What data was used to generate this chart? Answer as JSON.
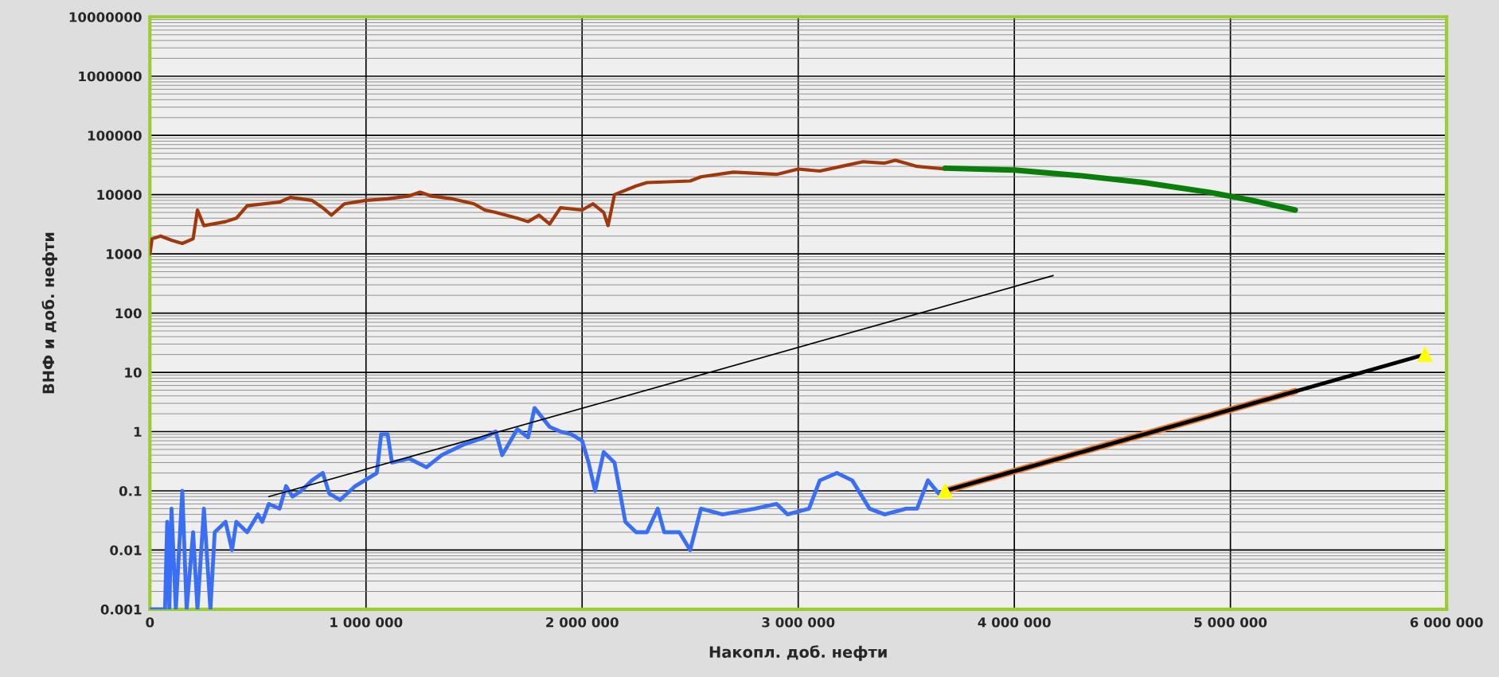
{
  "chart_data": {
    "type": "line",
    "xlabel": "Накопл. доб. нефти",
    "ylabel": "ВНФ и доб. нефти",
    "log": "y",
    "grid": true,
    "legend": false,
    "marker": "none",
    "line_style": "solid",
    "xlim": [
      0,
      6000000
    ],
    "xticks": [
      0,
      {
        "value": 1000000,
        "label": "1 000 000"
      },
      {
        "value": 2000000,
        "label": "2 000 000"
      },
      {
        "value": 3000000,
        "label": "3 000 000"
      },
      {
        "value": 4000000,
        "label": "4 000 000"
      },
      {
        "value": 5000000,
        "label": "5 000 000"
      },
      {
        "value": 6000000,
        "label": "6 000 000"
      }
    ],
    "ylim": [
      0.001,
      10000000
    ],
    "yticks": [
      0.001,
      0.01,
      0.1,
      1,
      10,
      100,
      1000,
      10000,
      100000,
      1000000,
      10000000
    ],
    "series": [
      {
        "color": "#a0380c",
        "x": [
          0,
          10000,
          50000,
          100000,
          150000,
          200000,
          220000,
          250000,
          350000,
          400000,
          450000,
          600000,
          650000,
          750000,
          800000,
          840000,
          900000,
          1000000,
          1100000,
          1200000,
          1250000,
          1300000,
          1400000,
          1500000,
          1550000,
          1600000,
          1700000,
          1750000,
          1800000,
          1850000,
          1900000,
          2000000,
          2050000,
          2100000,
          2120000,
          2150000,
          2250000,
          2300000,
          2500000,
          2550000,
          2700000,
          2900000,
          3000000,
          3100000,
          3200000,
          3300000,
          3400000,
          3450000,
          3550000,
          3680000
        ],
        "values": [
          1000,
          1800,
          2000,
          1700,
          1500,
          1800,
          5500,
          3000,
          3500,
          4000,
          6500,
          7500,
          9000,
          8000,
          6000,
          4500,
          7000,
          8000,
          8500,
          9500,
          11000,
          9500,
          8500,
          7000,
          5500,
          5000,
          4000,
          3500,
          4500,
          3200,
          6000,
          5500,
          7000,
          5000,
          3000,
          10000,
          14000,
          16000,
          17000,
          20000,
          24000,
          22000,
          27000,
          25000,
          30000,
          36000,
          34000,
          38000,
          30000,
          27000
        ]
      },
      {
        "color": "#3a6ff5",
        "x": [
          0,
          70000,
          80000,
          90000,
          100000,
          120000,
          150000,
          170000,
          200000,
          220000,
          250000,
          280000,
          300000,
          350000,
          380000,
          400000,
          450000,
          500000,
          520000,
          550000,
          600000,
          630000,
          660000,
          700000,
          750000,
          800000,
          830000,
          880000,
          950000,
          1050000,
          1070000,
          1100000,
          1120000,
          1200000,
          1280000,
          1350000,
          1450000,
          1550000,
          1600000,
          1630000,
          1700000,
          1750000,
          1780000,
          1850000,
          1900000,
          1950000,
          2000000,
          2030000,
          2060000,
          2100000,
          2150000,
          2200000,
          2250000,
          2300000,
          2350000,
          2380000,
          2450000,
          2500000,
          2550000,
          2650000,
          2800000,
          2900000,
          2950000,
          3050000,
          3100000,
          3180000,
          3250000,
          3330000,
          3400000,
          3500000,
          3550000,
          3600000,
          3650000,
          3680000
        ],
        "values": [
          0.001,
          0.001,
          0.03,
          0.001,
          0.05,
          0.001,
          0.1,
          0.001,
          0.02,
          0.001,
          0.05,
          0.001,
          0.02,
          0.03,
          0.01,
          0.03,
          0.02,
          0.04,
          0.03,
          0.06,
          0.05,
          0.12,
          0.08,
          0.1,
          0.15,
          0.2,
          0.09,
          0.07,
          0.12,
          0.2,
          0.9,
          0.9,
          0.3,
          0.35,
          0.25,
          0.4,
          0.6,
          0.8,
          1.0,
          0.4,
          1.1,
          0.8,
          2.5,
          1.2,
          1.0,
          0.9,
          0.7,
          0.3,
          0.1,
          0.45,
          0.3,
          0.03,
          0.02,
          0.02,
          0.05,
          0.02,
          0.02,
          0.01,
          0.05,
          0.04,
          0.05,
          0.06,
          0.04,
          0.05,
          0.15,
          0.2,
          0.15,
          0.05,
          0.04,
          0.05,
          0.05,
          0.15,
          0.09,
          0.1
        ]
      },
      {
        "color": "#0a7e0a",
        "x": [
          3680000,
          4000000,
          4300000,
          4600000,
          4900000,
          5100000,
          5300000
        ],
        "values": [
          28000,
          26000,
          21000,
          16000,
          11000,
          8000,
          5500
        ]
      },
      {
        "color": "#000000",
        "x": [
          550000,
          4180000
        ],
        "values": [
          0.08,
          430
        ]
      },
      {
        "color": "#e87a2a",
        "x": [
          3680000,
          5300000
        ],
        "values": [
          0.1,
          4.8
        ]
      },
      {
        "color": "#000000",
        "x": [
          3680000,
          5900000
        ],
        "values": [
          0.1,
          20
        ]
      },
      {
        "type": "scatter",
        "marker": "triangle",
        "color": "#ffff00",
        "x": [
          3680000,
          5900000
        ],
        "values": [
          0.1,
          20
        ]
      }
    ]
  }
}
